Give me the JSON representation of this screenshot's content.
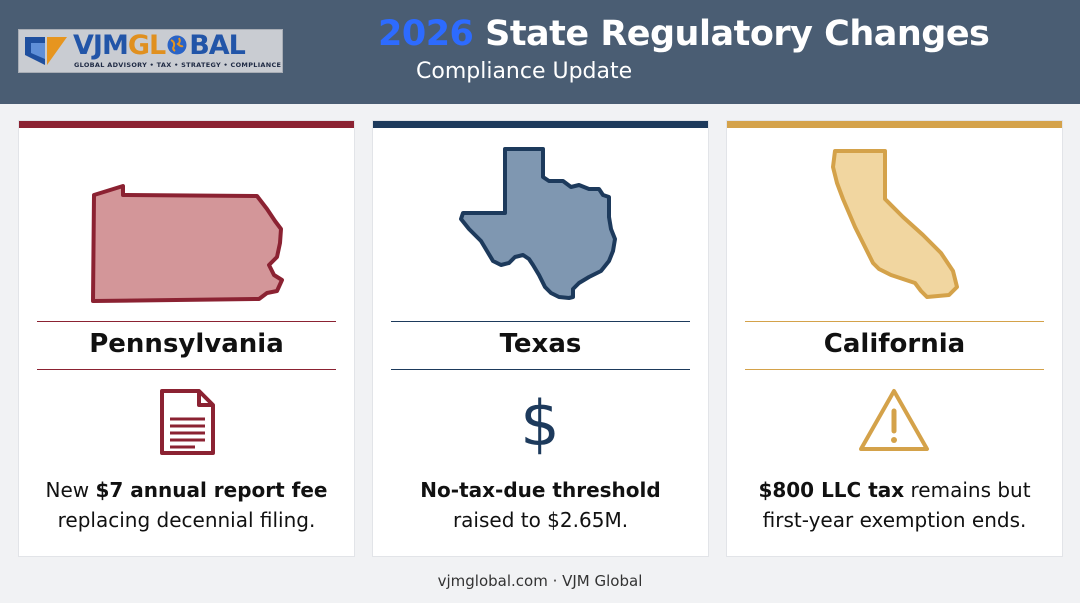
{
  "header": {
    "logo": {
      "name_part1": "VJM",
      "name_part2": "GL",
      "name_part3": "BAL",
      "tagline": "GLOBAL ADVISORY • TAX • STRATEGY • COMPLIANCE"
    },
    "title_year": "2026",
    "title_rest": " State Regulatory Changes",
    "subtitle": "Compliance Update"
  },
  "cards": [
    {
      "state": "Pennsylvania",
      "accent_color": "#8b2232",
      "map_fill": "#d39699",
      "icon": "document-icon",
      "desc_line1_pre": "New ",
      "desc_line1_bold": "$7 annual report fee",
      "desc_line1_post": "",
      "desc_line2": "replacing decennial filing."
    },
    {
      "state": "Texas",
      "accent_color": "#1d3a5c",
      "map_fill": "#7f97b1",
      "icon": "dollar-icon",
      "desc_line1_pre": "",
      "desc_line1_bold": "No-tax-due threshold",
      "desc_line1_post": "",
      "desc_line2": "raised to $2.65M."
    },
    {
      "state": "California",
      "accent_color": "#d4a24a",
      "map_fill": "#f1d6a0",
      "icon": "warning-icon",
      "desc_line1_pre": "",
      "desc_line1_bold": "$800 LLC tax",
      "desc_line1_post": " remains but",
      "desc_line2": "first-year exemption ends."
    }
  ],
  "footer": "vjmglobal.com · VJM Global"
}
